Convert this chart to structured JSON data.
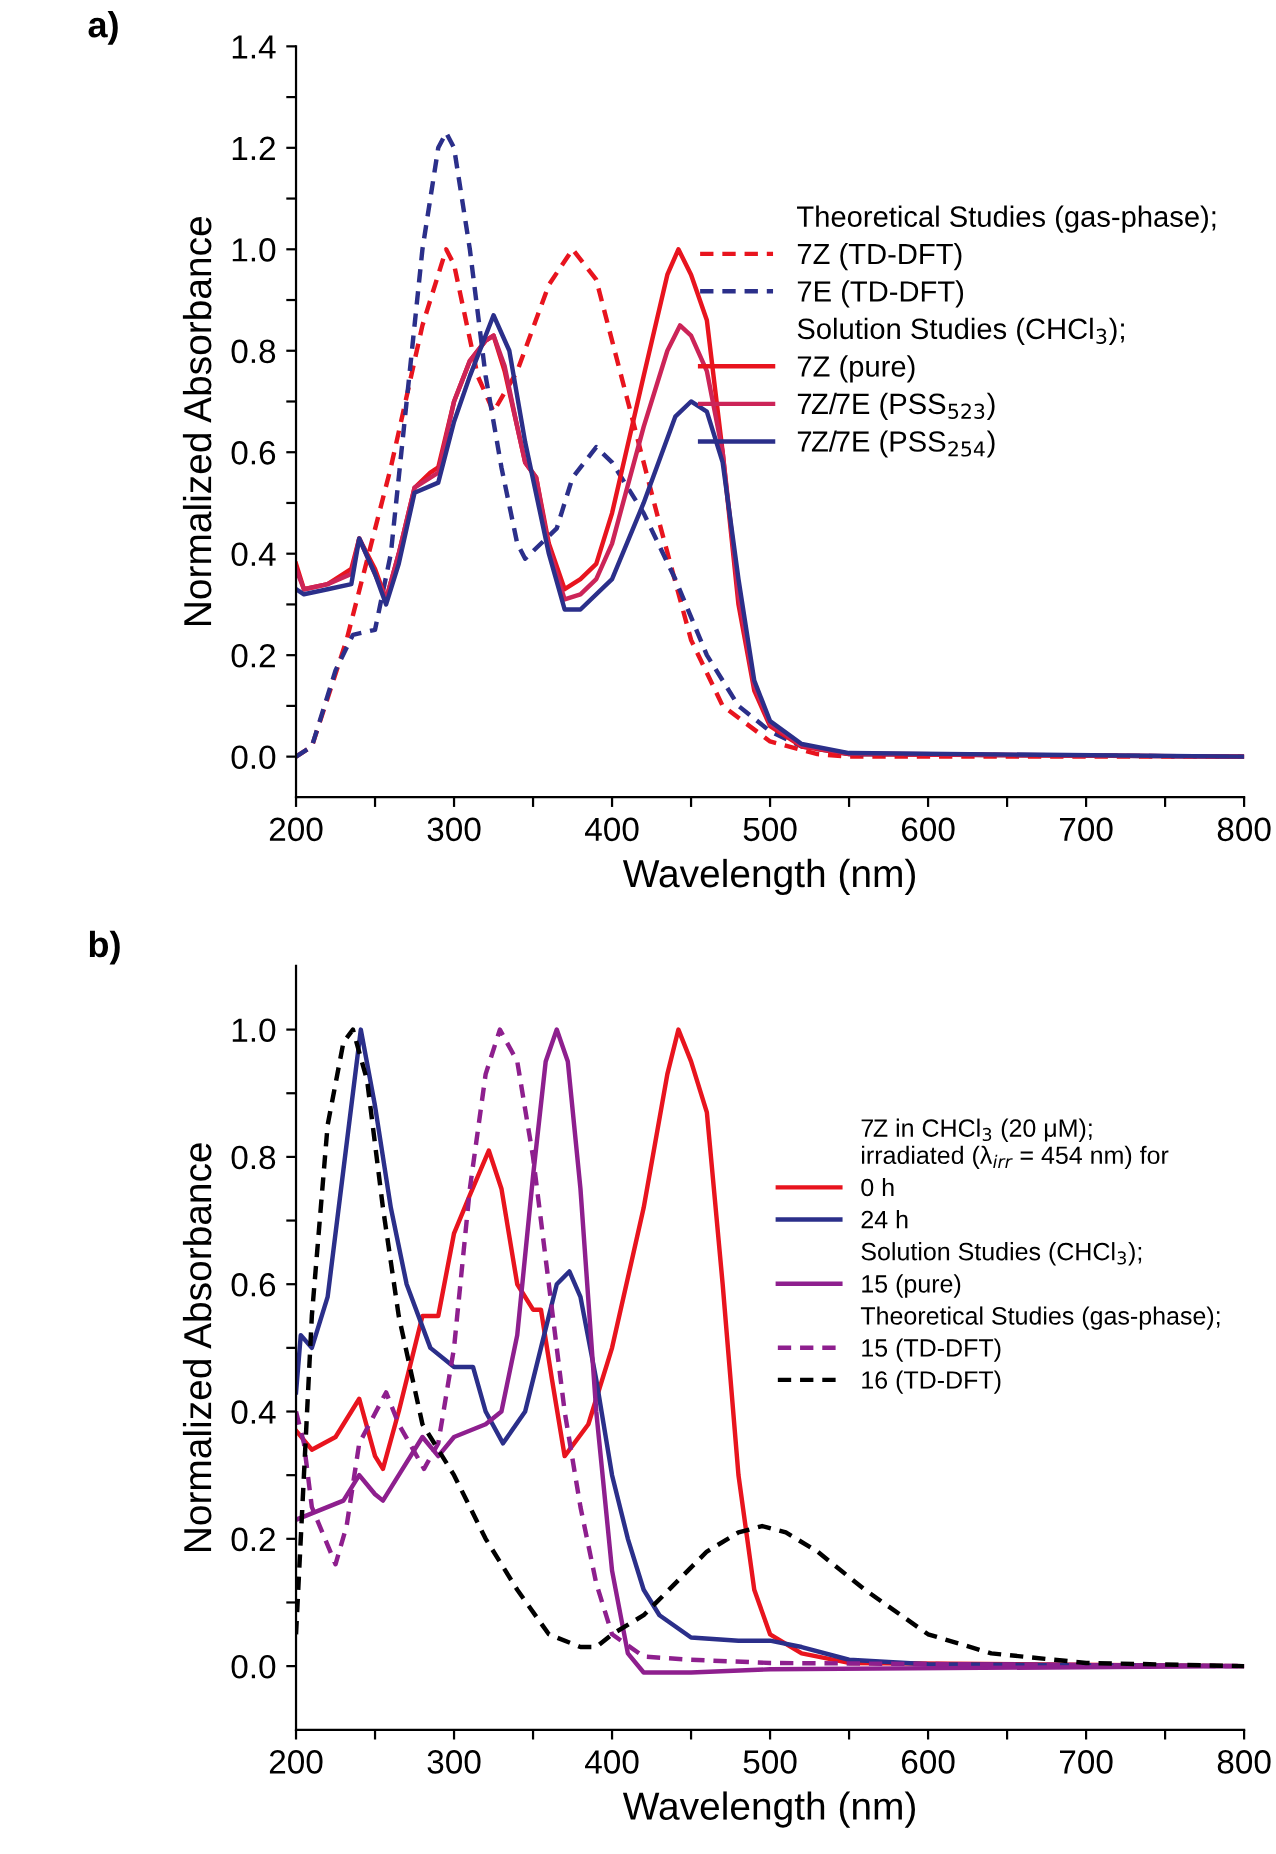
{
  "chart_data": [
    {
      "type": "line",
      "title": "a)",
      "xlabel": "Wavelength (nm)",
      "ylabel": "Normalized Absorbance",
      "xlim": [
        200,
        800
      ],
      "ylim": [
        -0.08,
        1.4
      ],
      "xticks": [
        200,
        {
          "value": 250,
          "label": null
        },
        300,
        {
          "value": 350,
          "label": null
        },
        400,
        {
          "value": 450,
          "label": null
        },
        500,
        {
          "value": 550,
          "label": null
        },
        600,
        {
          "value": 650,
          "label": null
        },
        700,
        {
          "value": 750,
          "label": null
        },
        800
      ],
      "yticks": [
        {
          "value": 0,
          "label": "0.0"
        },
        {
          "value": 0.1,
          "label": null
        },
        {
          "value": 0.2,
          "label": "0.2"
        },
        {
          "value": 0.3,
          "label": null
        },
        {
          "value": 0.4,
          "label": "0.4"
        },
        {
          "value": 0.5,
          "label": null
        },
        {
          "value": 0.6,
          "label": "0.6"
        },
        {
          "value": 0.7,
          "label": null
        },
        {
          "value": 0.8,
          "label": "0.8"
        },
        {
          "value": 0.9,
          "label": null
        },
        {
          "value": 1.0,
          "label": "1.0"
        },
        {
          "value": 1.1,
          "label": null
        },
        {
          "value": 1.2,
          "label": "1.2"
        },
        {
          "value": 1.3,
          "label": null
        },
        {
          "value": 1.4,
          "label": "1.4"
        }
      ],
      "grid": false,
      "legend": "right",
      "annotations": [
        "Theoretical Studies (gas-phase);",
        "Solution Studies (CHCl$_{3}$);"
      ],
      "series": [
        {
          "name": "7Z (TD-DFT)",
          "color": "#e8141e",
          "line_style": "dashed",
          "x": [
            200,
            210,
            232,
            260,
            280,
            295,
            300,
            315,
            325,
            340,
            360,
            375,
            390,
            410,
            430,
            450,
            470,
            500,
            530,
            550,
            800
          ],
          "values": [
            0,
            0.02,
            0.23,
            0.57,
            0.85,
            1.0,
            0.97,
            0.75,
            0.68,
            0.76,
            0.93,
            1.0,
            0.94,
            0.7,
            0.46,
            0.23,
            0.1,
            0.03,
            0.005,
            0,
            0
          ]
        },
        {
          "name": "7E (TD-DFT)",
          "color": "#2b2f8a",
          "line_style": "dashed",
          "x": [
            200,
            210,
            225,
            236,
            250,
            260,
            270,
            280,
            290,
            295,
            300,
            310,
            320,
            330,
            340,
            345,
            365,
            375,
            390,
            400,
            420,
            440,
            460,
            480,
            500,
            520,
            550,
            800
          ],
          "values": [
            0,
            0.02,
            0.17,
            0.24,
            0.25,
            0.4,
            0.7,
            1.0,
            1.2,
            1.23,
            1.2,
            1.0,
            0.75,
            0.57,
            0.42,
            0.39,
            0.45,
            0.55,
            0.61,
            0.58,
            0.48,
            0.35,
            0.2,
            0.1,
            0.05,
            0.02,
            0.005,
            0
          ]
        },
        {
          "name": "7Z (pure)",
          "color": "#e8141e",
          "line_style": "solid",
          "x": [
            200,
            205,
            220,
            235,
            240,
            250,
            257,
            265,
            275,
            285,
            290,
            300,
            310,
            320,
            325,
            332,
            340,
            345,
            352,
            360,
            370,
            380,
            390,
            400,
            420,
            435,
            442,
            450,
            460,
            470,
            480,
            490,
            500,
            520,
            550,
            800
          ],
          "values": [
            0.38,
            0.33,
            0.34,
            0.37,
            0.43,
            0.37,
            0.31,
            0.4,
            0.53,
            0.56,
            0.57,
            0.7,
            0.78,
            0.82,
            0.83,
            0.76,
            0.65,
            0.58,
            0.55,
            0.42,
            0.33,
            0.35,
            0.38,
            0.48,
            0.75,
            0.95,
            1.0,
            0.95,
            0.86,
            0.6,
            0.3,
            0.13,
            0.06,
            0.02,
            0.005,
            0
          ]
        },
        {
          "name": "7Z/7E (PSS$_{523}$)",
          "color": "#cc2458",
          "line_style": "solid",
          "x": [
            200,
            205,
            220,
            235,
            240,
            250,
            257,
            265,
            275,
            285,
            290,
            300,
            310,
            320,
            325,
            332,
            340,
            345,
            352,
            360,
            370,
            380,
            390,
            400,
            420,
            435,
            443,
            450,
            460,
            470,
            480,
            490,
            500,
            520,
            550,
            800
          ],
          "values": [
            0.37,
            0.33,
            0.34,
            0.36,
            0.43,
            0.36,
            0.31,
            0.4,
            0.53,
            0.55,
            0.56,
            0.7,
            0.78,
            0.82,
            0.83,
            0.77,
            0.65,
            0.58,
            0.55,
            0.41,
            0.31,
            0.32,
            0.35,
            0.42,
            0.65,
            0.8,
            0.85,
            0.83,
            0.76,
            0.6,
            0.32,
            0.14,
            0.065,
            0.022,
            0.006,
            0
          ]
        },
        {
          "name": "7Z/7E (PSS$_{254}$)",
          "color": "#2b2f8a",
          "line_style": "solid",
          "x": [
            200,
            205,
            220,
            235,
            240,
            250,
            257,
            265,
            275,
            290,
            300,
            310,
            325,
            335,
            345,
            360,
            370,
            380,
            400,
            420,
            440,
            450,
            460,
            470,
            480,
            490,
            500,
            520,
            550,
            800
          ],
          "values": [
            0.33,
            0.32,
            0.33,
            0.34,
            0.43,
            0.36,
            0.3,
            0.38,
            0.52,
            0.54,
            0.66,
            0.75,
            0.87,
            0.8,
            0.62,
            0.4,
            0.29,
            0.29,
            0.35,
            0.5,
            0.67,
            0.7,
            0.68,
            0.58,
            0.35,
            0.15,
            0.07,
            0.025,
            0.007,
            0
          ]
        }
      ]
    },
    {
      "type": "line",
      "title": "b)",
      "xlabel": "Wavelength (nm)",
      "ylabel": "Normalized Absorbance",
      "xlim": [
        200,
        800
      ],
      "ylim": [
        -0.1,
        1.1
      ],
      "xticks": [
        200,
        {
          "value": 250,
          "label": null
        },
        300,
        {
          "value": 350,
          "label": null
        },
        400,
        {
          "value": 450,
          "label": null
        },
        500,
        {
          "value": 550,
          "label": null
        },
        600,
        {
          "value": 650,
          "label": null
        },
        700,
        {
          "value": 750,
          "label": null
        },
        800
      ],
      "yticks": [
        {
          "value": 0,
          "label": "0.0"
        },
        {
          "value": 0.1,
          "label": null
        },
        {
          "value": 0.2,
          "label": "0.2"
        },
        {
          "value": 0.3,
          "label": null
        },
        {
          "value": 0.4,
          "label": "0.4"
        },
        {
          "value": 0.5,
          "label": null
        },
        {
          "value": 0.6,
          "label": "0.6"
        },
        {
          "value": 0.7,
          "label": null
        },
        {
          "value": 0.8,
          "label": "0.8"
        },
        {
          "value": 0.9,
          "label": null
        },
        {
          "value": 1.0,
          "label": "1.0"
        }
      ],
      "grid": false,
      "legend": "right",
      "annotations": [
        "7Z in CHCl$_{3}$ (20 μM);\nirradiated (λ$_{irr}$ = 454 nm) for",
        "Solution Studies (CHCl$_{3}$);",
        "Theoretical Studies (gas-phase);"
      ],
      "series": [
        {
          "name": "0 h",
          "color": "#e8141e",
          "line_style": "solid",
          "x": [
            200,
            210,
            225,
            240,
            250,
            255,
            265,
            280,
            290,
            300,
            310,
            322,
            330,
            340,
            350,
            355,
            362,
            370,
            385,
            400,
            420,
            435,
            442,
            450,
            460,
            470,
            480,
            490,
            500,
            520,
            550,
            800
          ],
          "values": [
            0.37,
            0.34,
            0.36,
            0.42,
            0.33,
            0.31,
            0.4,
            0.55,
            0.55,
            0.68,
            0.74,
            0.81,
            0.75,
            0.6,
            0.56,
            0.56,
            0.45,
            0.33,
            0.38,
            0.5,
            0.72,
            0.93,
            1.0,
            0.95,
            0.87,
            0.6,
            0.3,
            0.12,
            0.05,
            0.02,
            0.005,
            0
          ]
        },
        {
          "name": "24 h",
          "color": "#2b2f8a",
          "line_style": "solid",
          "x": [
            200,
            203,
            210,
            220,
            230,
            241,
            250,
            260,
            270,
            285,
            300,
            312,
            320,
            331,
            345,
            355,
            365,
            373,
            380,
            390,
            400,
            410,
            420,
            430,
            450,
            480,
            500,
            520,
            550,
            600,
            800
          ],
          "values": [
            0.43,
            0.52,
            0.5,
            0.58,
            0.78,
            1.0,
            0.88,
            0.72,
            0.6,
            0.5,
            0.47,
            0.47,
            0.4,
            0.35,
            0.4,
            0.5,
            0.6,
            0.62,
            0.58,
            0.45,
            0.3,
            0.2,
            0.12,
            0.08,
            0.045,
            0.04,
            0.04,
            0.03,
            0.01,
            0.003,
            0
          ]
        },
        {
          "name": "15 (pure)",
          "color": "#8e1f8e",
          "line_style": "solid",
          "x": [
            200,
            210,
            230,
            240,
            250,
            255,
            265,
            280,
            290,
            300,
            320,
            330,
            340,
            350,
            358,
            365,
            372,
            380,
            390,
            400,
            410,
            420,
            450,
            500,
            800
          ],
          "values": [
            0.23,
            0.24,
            0.26,
            0.3,
            0.27,
            0.26,
            0.3,
            0.36,
            0.33,
            0.36,
            0.38,
            0.4,
            0.52,
            0.77,
            0.95,
            1.0,
            0.95,
            0.75,
            0.4,
            0.15,
            0.02,
            -0.01,
            -0.01,
            -0.005,
            0
          ]
        },
        {
          "name": "15 (TD-DFT)",
          "color": "#8e1f8e",
          "line_style": "dashed",
          "x": [
            200,
            205,
            210,
            225,
            232,
            240,
            257,
            265,
            281,
            290,
            300,
            310,
            320,
            329,
            340,
            350,
            360,
            370,
            380,
            390,
            400,
            420,
            450,
            500,
            800
          ],
          "values": [
            0.4,
            0.35,
            0.25,
            0.16,
            0.22,
            0.35,
            0.43,
            0.38,
            0.31,
            0.35,
            0.5,
            0.75,
            0.93,
            1.0,
            0.95,
            0.8,
            0.6,
            0.4,
            0.25,
            0.13,
            0.05,
            0.015,
            0.01,
            0.005,
            0
          ]
        },
        {
          "name": "16 (TD-DFT)",
          "color": "#000000",
          "line_style": "dashed",
          "x": [
            200,
            205,
            210,
            220,
            230,
            236,
            245,
            255,
            265,
            280,
            300,
            320,
            340,
            360,
            380,
            390,
            400,
            420,
            440,
            460,
            480,
            495,
            510,
            530,
            560,
            600,
            640,
            700,
            800
          ],
          "values": [
            0.05,
            0.3,
            0.55,
            0.85,
            0.98,
            1.0,
            0.92,
            0.72,
            0.55,
            0.38,
            0.3,
            0.2,
            0.12,
            0.05,
            0.03,
            0.03,
            0.05,
            0.08,
            0.13,
            0.18,
            0.21,
            0.22,
            0.21,
            0.18,
            0.12,
            0.05,
            0.02,
            0.005,
            0
          ]
        }
      ]
    }
  ]
}
